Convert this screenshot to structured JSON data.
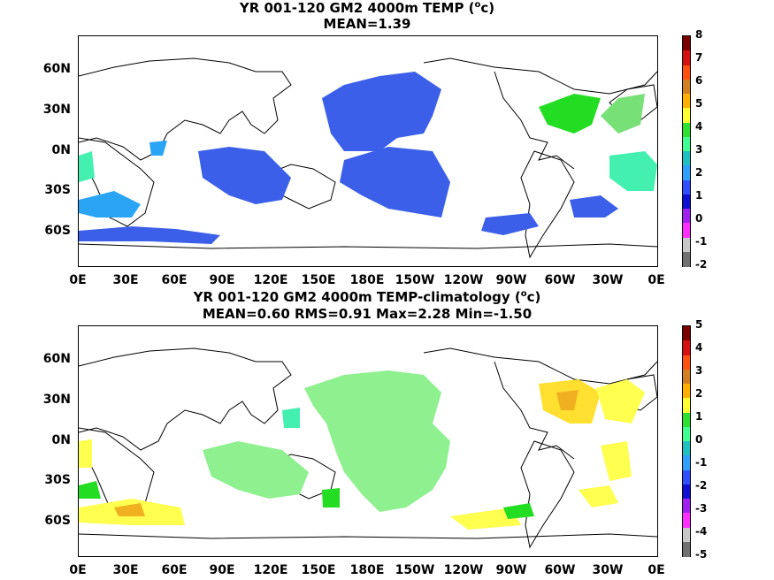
{
  "panels": [
    {
      "title_prefix": "YR 001-120 GM2 4000m TEMP (",
      "unit_sup": "o",
      "unit_rest": "c)",
      "subtitle": "MEAN=1.39",
      "colorbar_labels": [
        "8",
        "7",
        "6",
        "5",
        "4",
        "3",
        "2",
        "1",
        "0",
        "-1",
        "-2"
      ]
    },
    {
      "title_prefix": "YR 001-120 GM2 4000m TEMP-climatology (",
      "unit_sup": "o",
      "unit_rest": "c)",
      "subtitle": "MEAN=0.60   RMS=0.91   Max=2.28   Min=-1.50",
      "colorbar_labels": [
        "5",
        "4",
        "3",
        "2",
        "1",
        "0",
        "-1",
        "-2",
        "-3",
        "-4",
        "-5"
      ]
    }
  ],
  "lat_labels": [
    "60N",
    "30N",
    "0N",
    "30S",
    "60S"
  ],
  "lon_labels": [
    "0E",
    "30E",
    "60E",
    "90E",
    "120E",
    "150E",
    "180E",
    "150W",
    "120W",
    "90W",
    "60W",
    "30W",
    "0E"
  ],
  "colorbar_colors": [
    "#7a0000",
    "#d41010",
    "#ff5010",
    "#d08020",
    "#ffb000",
    "#ffff30",
    "#30e030",
    "#40ff90",
    "#20c0c0",
    "#30a0ff",
    "#3050ff",
    "#1010d0",
    "#a020f0",
    "#ff30ff",
    "#c8c8c8",
    "#707070"
  ]
}
